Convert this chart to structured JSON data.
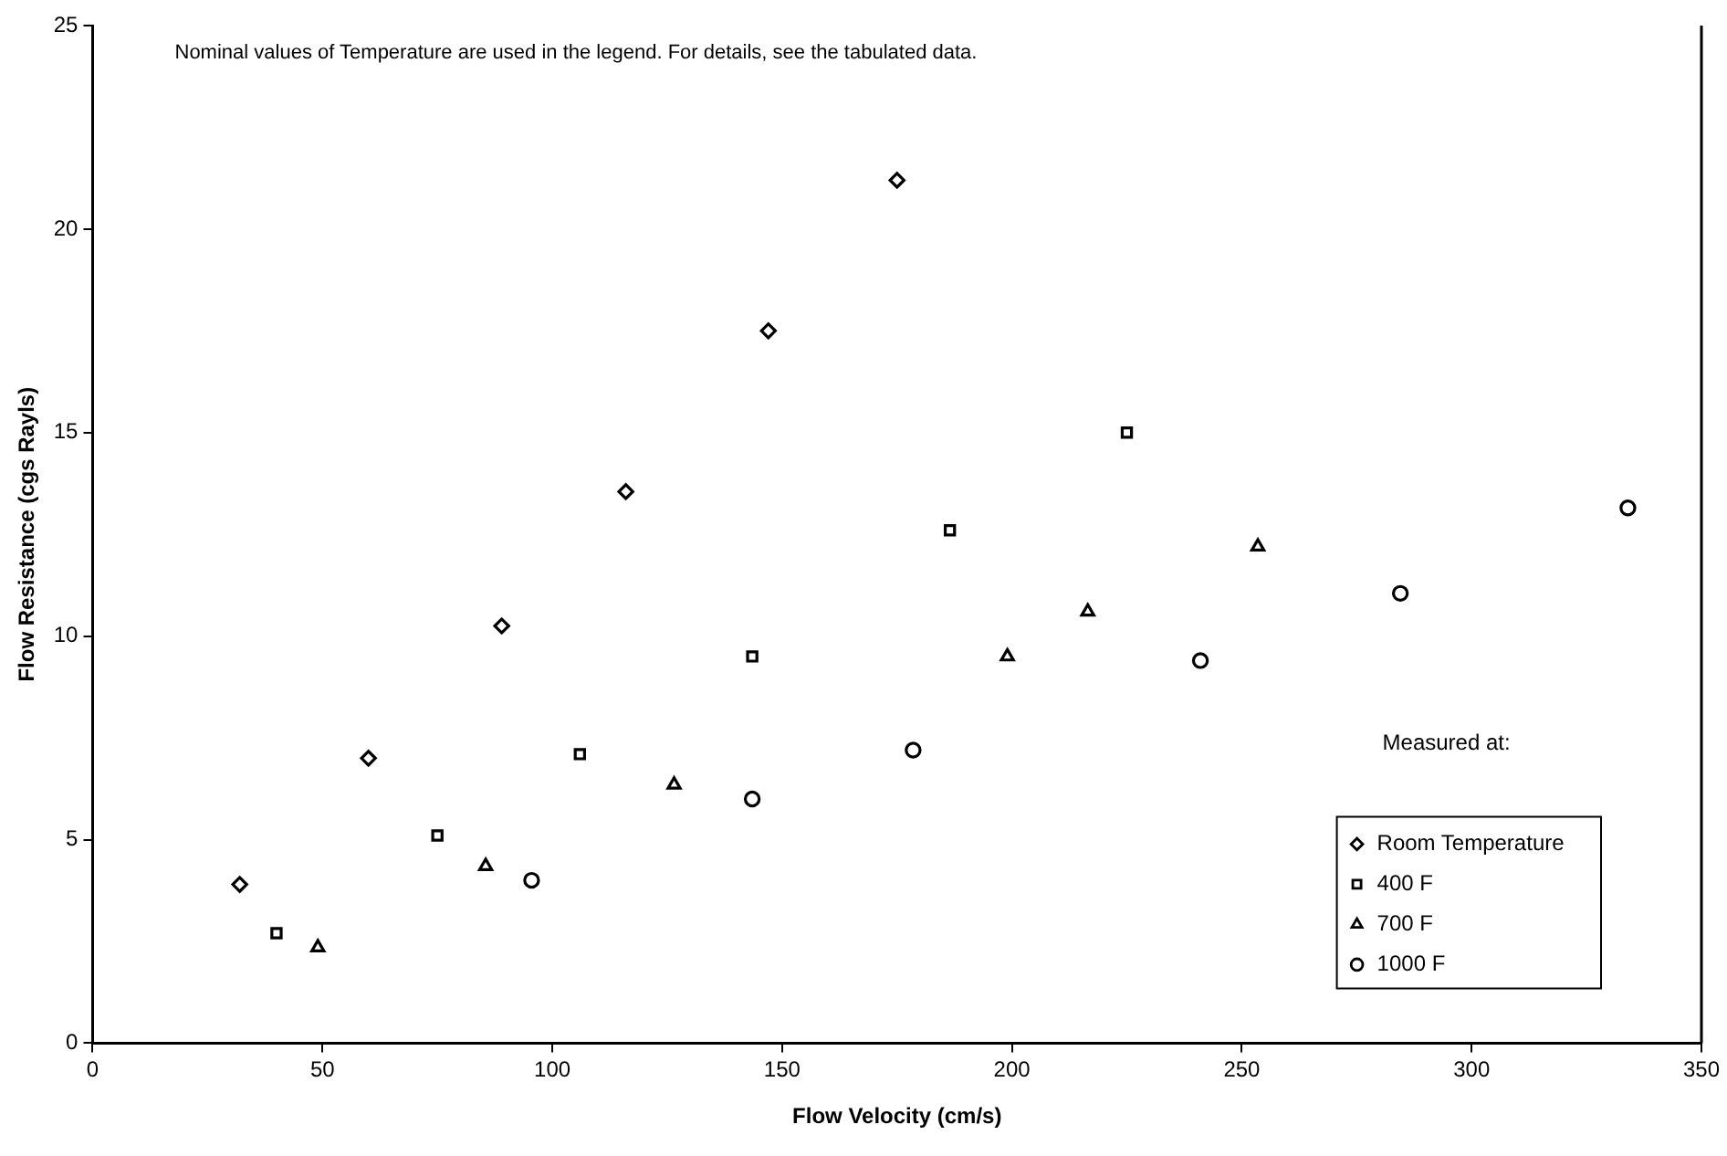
{
  "chart_data": {
    "type": "scatter",
    "xlabel": "Flow Velocity (cm/s)",
    "ylabel": "Flow Resistance (cgs Rayls)",
    "legend_title": "Measured at:",
    "legend": "bottom right",
    "grid": false,
    "annotations": [
      "Nominal values of Temperature are used in the legend. For details, see the tabulated data."
    ],
    "xlim": [
      0,
      350
    ],
    "xticks": [
      0,
      50,
      100,
      150,
      200,
      250,
      300,
      350
    ],
    "ylim": [
      0,
      25
    ],
    "yticks": [
      0,
      5,
      10,
      15,
      20,
      25
    ],
    "series": [
      {
        "name": "Room Temperature",
        "color": "#000000",
        "marker": "diamond",
        "x": [
          32,
          60,
          89,
          116,
          147,
          175
        ],
        "values": [
          3.9,
          7.0,
          10.25,
          13.55,
          17.5,
          21.2
        ]
      },
      {
        "name": "400 F",
        "color": "#000000",
        "marker": "square",
        "x": [
          40,
          75,
          106,
          143.5,
          186.5,
          225
        ],
        "values": [
          2.7,
          5.1,
          7.1,
          9.5,
          12.6,
          15.0
        ]
      },
      {
        "name": "700 F",
        "color": "#000000",
        "marker": "triangle",
        "x": [
          49,
          85.5,
          126.5,
          199,
          216.5,
          253.5
        ],
        "values": [
          2.35,
          4.35,
          6.35,
          9.5,
          10.6,
          12.2
        ]
      },
      {
        "name": "1000 F",
        "color": "#000000",
        "marker": "circle",
        "x": [
          95.5,
          143.5,
          178.5,
          241,
          284.5,
          334
        ],
        "values": [
          4.0,
          6.0,
          7.2,
          9.4,
          11.05,
          13.15
        ]
      }
    ]
  }
}
